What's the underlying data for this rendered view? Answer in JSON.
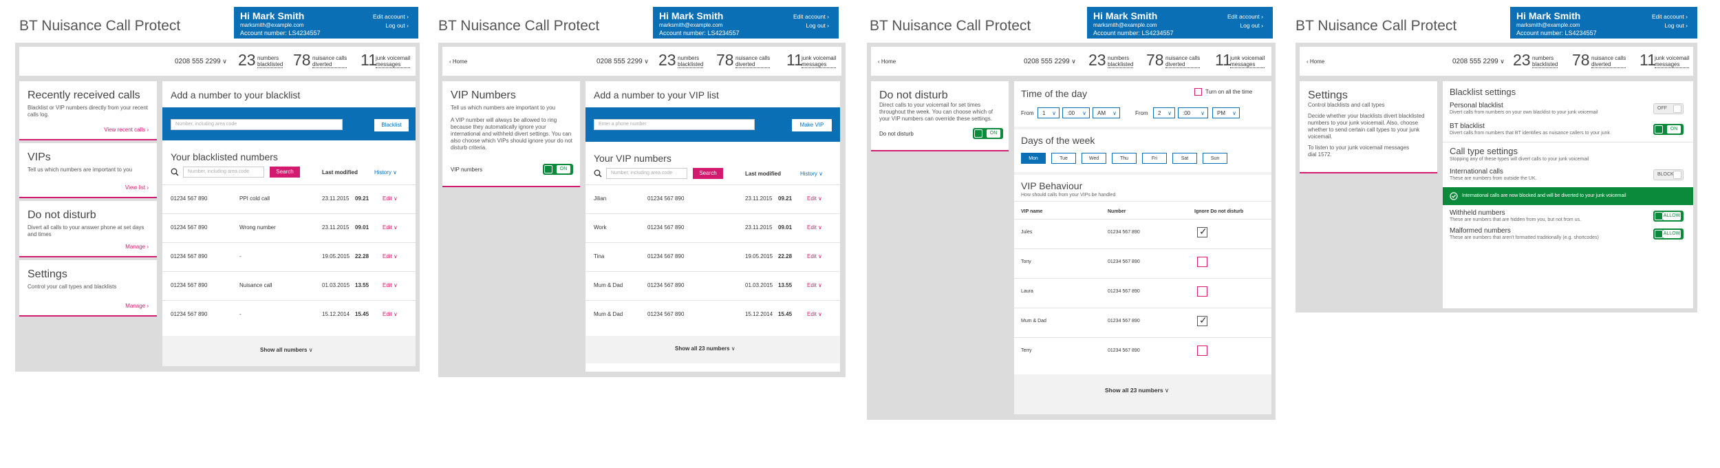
{
  "app_title": "BT Nuisance Call Protect",
  "header": {
    "greeting": "Hi Mark Smith",
    "email": "marksmith@example.com",
    "account": "Account number: LS4234557",
    "edit_account": "Edit account",
    "log_out": "Log out"
  },
  "stats": {
    "phone": "0208 555 2299",
    "blacklisted_count": "23",
    "blacklisted_label_1": "numbers",
    "blacklisted_label_2": "blacklisted",
    "diverted_count": "78",
    "diverted_label_1": "nuisance calls",
    "diverted_label_2": "diverted",
    "junk_count": "11",
    "junk_label_1": "junk voicemail",
    "junk_label_2": "messages"
  },
  "home_link": "Home",
  "panel1": {
    "cards": [
      {
        "title": "Recently received calls",
        "desc": "Blacklist or VIP numbers directly from your recent calls log.",
        "link": "View recent calls"
      },
      {
        "title": "VIPs",
        "desc": "Tell us which numbers are important to you",
        "link": "View list"
      },
      {
        "title": "Do not disturb",
        "desc": "Divert all calls to your answer phone at set days and times",
        "link": "Manage"
      },
      {
        "title": "Settings",
        "desc": "Control your call types and blacklists",
        "link": "Manage"
      }
    ],
    "add_title": "Add a number to your blacklist",
    "add_placeholder": "Number, including area code",
    "blacklist_button": "Blacklist",
    "list_title": "Your blacklisted numbers",
    "search_placeholder": "Number, including area code",
    "search_button": "Search",
    "col_last_modified": "Last modified",
    "history": "History",
    "edit": "Edit",
    "rows": [
      {
        "number": "01234 567 890",
        "note": "PPI cold call",
        "date": "23.11.2015",
        "time": "09.21"
      },
      {
        "number": "01234 567 890",
        "note": "Wrong number",
        "date": "23.11.2015",
        "time": "09.01"
      },
      {
        "number": "01234 567 890",
        "note": "-",
        "date": "19.05.2015",
        "time": "22.28"
      },
      {
        "number": "01234 567 890",
        "note": "Nuisance call",
        "date": "01.03.2015",
        "time": "13.55"
      },
      {
        "number": "01234 567 890",
        "note": "-",
        "date": "15.12.2014",
        "time": "15.45"
      }
    ],
    "show_all": "Show all numbers"
  },
  "panel2": {
    "card_title": "VIP Numbers",
    "card_sub": "Tell us which numbers are important to you",
    "card_desc": "A VIP number will always be allowed to ring because they automatically ignore your international and withheld divert settings. You can also choose which VIPs should ignore your do not disturb criteria.",
    "vip_numbers_label": "VIP numbers",
    "toggle_on": "ON",
    "add_title": "Add a number to your VIP list",
    "add_placeholder": "Enter a phone number",
    "make_vip_button": "Make VIP",
    "list_title": "Your VIP numbers",
    "search_placeholder": "Number, including area code",
    "search_button": "Search",
    "col_last_modified": "Last modified",
    "history": "History",
    "edit": "Edit",
    "rows": [
      {
        "name": "Jilian",
        "number": "01234 567 890",
        "date": "23.11.2015",
        "time": "09.21"
      },
      {
        "name": "Work",
        "number": "01234 567 890",
        "date": "23.11.2015",
        "time": "09.01"
      },
      {
        "name": "Tina",
        "number": "01234 567 890",
        "date": "19.05.2015",
        "time": "22.28"
      },
      {
        "name": "Mum & Dad",
        "number": "01234 567 890",
        "date": "01.03.2015",
        "time": "13.55"
      },
      {
        "name": "Mum & Dad",
        "number": "01234 567 890",
        "date": "15.12.2014",
        "time": "15.45"
      }
    ],
    "show_all": "Show all 23 numbers"
  },
  "panel3": {
    "card_title": "Do not disturb",
    "card_desc": "Direct calls to your voicemail for set times throughout the week. You can choose which of your VIP numbers can override these settings.",
    "dnd_label": "Do not disturb",
    "toggle_on": "ON",
    "time_title": "Time of the day",
    "turn_on_all": "Turn on all the time",
    "from": "From",
    "to": "From",
    "from_hour": "1",
    "from_min": ":00",
    "from_ampm": "AM",
    "to_hour": "2",
    "to_min": ":00",
    "to_ampm": "PM",
    "days_title": "Days of the week",
    "days": [
      "Mon",
      "Tue",
      "Wed",
      "Thu",
      "Fri",
      "Sat",
      "Sun"
    ],
    "behaviour_title": "VIP Behaviour",
    "behaviour_sub": "How should calls from your VIPs be handled",
    "col_name": "VIP name",
    "col_number": "Number",
    "col_ignore": "Ignore Do not disturb",
    "rows": [
      {
        "name": "Jules",
        "number": "01234 567 890",
        "checked": true
      },
      {
        "name": "Tony",
        "number": "01234 567 890",
        "checked": false
      },
      {
        "name": "Laura",
        "number": "01234 567 890",
        "checked": false
      },
      {
        "name": "Mum & Dad",
        "number": "01234 567 890",
        "checked": true
      },
      {
        "name": "Terry",
        "number": "01234 567 890",
        "checked": false
      }
    ],
    "show_all": "Show all 23 numbers"
  },
  "panel4": {
    "card_title": "Settings",
    "card_sub": "Control blacklists and call types",
    "card_desc": "Decide whether your blacklists divert blacklisted numbers to your junk voicemail. Also, choose whether to send certain call types to your junk voicemail.",
    "card_desc2": "To listen to your junk voicemail messages dial 1572.",
    "blacklist_settings": "Blacklist settings",
    "personal_title": "Personal blacklist",
    "personal_desc": "Divert calls from numbers on your own blacklist to your junk voicemail",
    "personal_state": "OFF",
    "bt_title": "BT blacklist",
    "bt_desc": "Divert calls from numbers that BT identifies as nuisance callers to your junk",
    "bt_state": "ON",
    "call_type_title": "Call type settings",
    "call_type_desc": "Stopping any of these types will divert calls to your junk voicemail",
    "intl_title": "International calls",
    "intl_desc": "These are numbers from outside the UK.",
    "intl_state": "BLOCK",
    "banner": "International calls are now blocked and will be diverted to your junk voicemail",
    "withheld_title": "Withheld numbers",
    "withheld_desc": "These are numbers that are hidden from you, but not from us.",
    "withheld_state": "ALLOW",
    "malformed_title": "Malformed numbers",
    "malformed_desc": "These are numbers that aren't formatted traditionally (e.g. shortcodes)",
    "malformed_state": "ALLOW"
  },
  "colors": {
    "bt_blue": "#0b6fb6",
    "bt_pink": "#d41a6e",
    "green": "#0a8a3a",
    "frame_grey": "#dcdcdc"
  },
  "icons": [
    "search-icon",
    "chevron-down-icon",
    "chevron-right-icon",
    "check-circle-icon",
    "checkbox-icon"
  ]
}
